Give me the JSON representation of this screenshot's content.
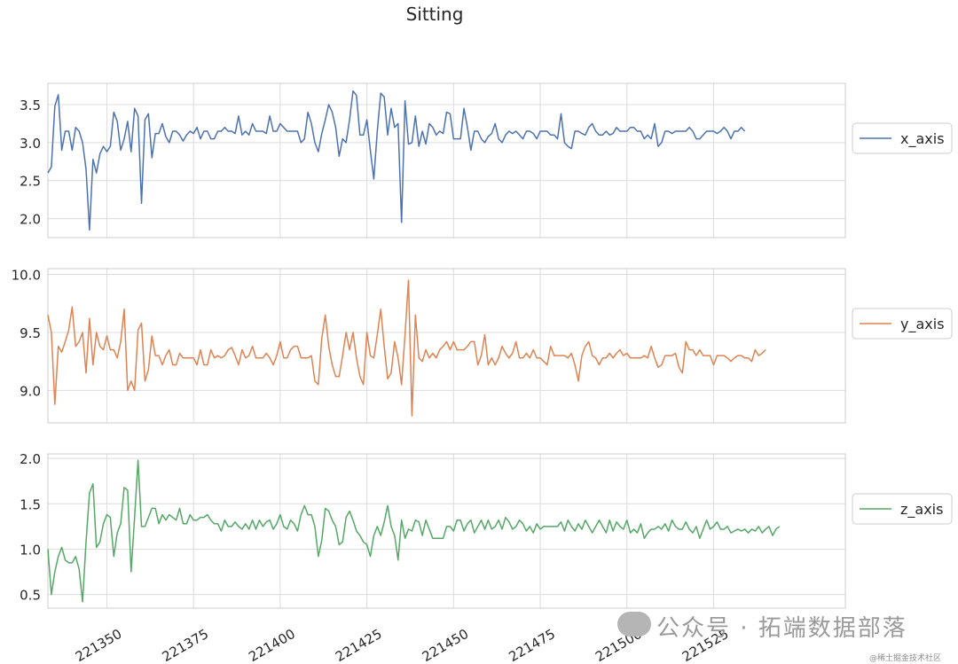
{
  "chart_data": {
    "title": "Sitting",
    "type": "line",
    "x_start": 221333,
    "xlim": [
      221333,
      221563
    ],
    "xticks": [
      221350,
      221375,
      221400,
      221425,
      221450,
      221475,
      221500,
      221525
    ],
    "xtick_labels": [
      "221350",
      "221375",
      "221400",
      "221425",
      "221450",
      "221475",
      "221500",
      "221525"
    ],
    "panels": [
      {
        "name": "x_axis",
        "color": "#4c72b0",
        "ylim": [
          1.75,
          3.78
        ],
        "yticks": [
          2.0,
          2.5,
          3.0,
          3.5
        ],
        "ytick_labels": [
          "2.0",
          "2.5",
          "3.0",
          "3.5"
        ],
        "legend": "x_axis",
        "values": [
          2.6,
          2.68,
          3.48,
          3.63,
          2.9,
          3.15,
          3.15,
          2.9,
          3.2,
          3.15,
          3.0,
          2.65,
          1.85,
          2.78,
          2.6,
          2.85,
          2.95,
          2.88,
          2.95,
          3.4,
          3.28,
          2.9,
          3.05,
          3.28,
          2.88,
          3.45,
          3.35,
          2.2,
          3.3,
          3.38,
          2.8,
          3.12,
          3.12,
          3.25,
          3.08,
          3.0,
          3.15,
          3.15,
          3.1,
          3.02,
          3.1,
          3.15,
          3.12,
          3.2,
          3.05,
          3.15,
          3.15,
          3.05,
          3.05,
          3.15,
          3.15,
          3.2,
          3.15,
          3.15,
          3.12,
          3.35,
          3.1,
          3.15,
          3.1,
          3.25,
          3.15,
          3.15,
          3.15,
          3.12,
          3.35,
          3.15,
          3.15,
          3.25,
          3.2,
          3.15,
          3.15,
          3.15,
          3.15,
          3.0,
          3.05,
          3.4,
          3.25,
          3.0,
          2.88,
          3.12,
          3.3,
          3.5,
          3.4,
          3.2,
          2.82,
          3.05,
          3.0,
          3.3,
          3.68,
          3.62,
          3.1,
          3.1,
          3.3,
          2.9,
          2.52,
          3.15,
          3.65,
          3.6,
          3.1,
          3.45,
          3.2,
          3.25,
          1.95,
          3.55,
          2.98,
          3.0,
          3.35,
          2.95,
          3.15,
          2.98,
          3.25,
          3.2,
          3.1,
          3.15,
          3.12,
          3.4,
          3.38,
          3.05,
          3.05,
          3.05,
          3.45,
          3.2,
          2.9,
          3.15,
          3.15,
          3.05,
          3.0,
          3.08,
          3.12,
          3.25,
          3.05,
          3.0,
          3.1,
          3.15,
          3.12,
          3.15,
          3.1,
          3.05,
          3.15,
          3.15,
          3.12,
          3.05,
          3.15,
          3.15,
          3.15,
          3.1,
          3.1,
          3.05,
          3.38,
          3.0,
          2.95,
          2.92,
          3.15,
          3.15,
          3.12,
          3.1,
          3.2,
          3.25,
          3.15,
          3.1,
          3.1,
          3.15,
          3.1,
          3.12,
          3.2,
          3.15,
          3.15,
          3.15,
          3.2,
          3.2,
          3.15,
          3.15,
          3.05,
          3.1,
          3.05,
          3.25,
          2.95,
          3.0,
          3.15,
          3.15,
          3.12,
          3.15,
          3.15,
          3.15,
          3.15,
          3.2,
          3.15,
          3.05,
          3.05,
          3.1,
          3.15,
          3.15,
          3.15,
          3.12,
          3.15,
          3.2,
          3.15,
          3.05,
          3.15,
          3.15,
          3.2,
          3.15
        ]
      },
      {
        "name": "y_axis",
        "color": "#dd8452",
        "ylim": [
          8.72,
          10.05
        ],
        "yticks": [
          9.0,
          9.5,
          10.0
        ],
        "ytick_labels": [
          "9.0",
          "9.5",
          "10.0"
        ],
        "legend": "y_axis",
        "values": [
          9.65,
          9.5,
          8.88,
          9.38,
          9.33,
          9.42,
          9.52,
          9.72,
          9.38,
          9.42,
          9.5,
          9.15,
          9.62,
          9.22,
          9.5,
          9.38,
          9.35,
          9.47,
          9.35,
          9.35,
          9.28,
          9.42,
          9.7,
          9.0,
          9.08,
          9.0,
          9.52,
          9.58,
          9.08,
          9.18,
          9.47,
          9.3,
          9.3,
          9.22,
          9.3,
          9.35,
          9.22,
          9.22,
          9.32,
          9.28,
          9.28,
          9.28,
          9.28,
          9.22,
          9.35,
          9.22,
          9.22,
          9.35,
          9.28,
          9.3,
          9.28,
          9.3,
          9.35,
          9.37,
          9.3,
          9.22,
          9.35,
          9.28,
          9.3,
          9.38,
          9.28,
          9.28,
          9.28,
          9.32,
          9.28,
          9.22,
          9.3,
          9.42,
          9.28,
          9.28,
          9.35,
          9.38,
          9.38,
          9.28,
          9.28,
          9.28,
          9.3,
          9.08,
          9.05,
          9.45,
          9.65,
          9.38,
          9.22,
          9.12,
          9.12,
          9.3,
          9.5,
          9.35,
          9.5,
          9.28,
          9.12,
          9.05,
          9.5,
          9.3,
          9.28,
          9.48,
          9.7,
          9.38,
          9.1,
          9.15,
          9.42,
          9.28,
          9.05,
          9.48,
          9.95,
          8.78,
          9.65,
          9.28,
          9.25,
          9.35,
          9.28,
          9.32,
          9.28,
          9.35,
          9.38,
          9.42,
          9.35,
          9.42,
          9.35,
          9.35,
          9.35,
          9.38,
          9.42,
          9.42,
          9.22,
          9.3,
          9.48,
          9.22,
          9.28,
          9.22,
          9.28,
          9.38,
          9.32,
          9.28,
          9.32,
          9.42,
          9.28,
          9.28,
          9.32,
          9.28,
          9.35,
          9.28,
          9.28,
          9.25,
          9.22,
          9.38,
          9.3,
          9.3,
          9.3,
          9.3,
          9.28,
          9.32,
          9.22,
          9.08,
          9.3,
          9.38,
          9.42,
          9.3,
          9.28,
          9.22,
          9.28,
          9.28,
          9.32,
          9.28,
          9.32,
          9.35,
          9.3,
          9.32,
          9.28,
          9.28,
          9.28,
          9.28,
          9.3,
          9.28,
          9.38,
          9.28,
          9.2,
          9.22,
          9.3,
          9.3,
          9.3,
          9.32,
          9.2,
          9.15,
          9.42,
          9.35,
          9.35,
          9.3,
          9.35,
          9.3,
          9.3,
          9.3,
          9.22,
          9.3,
          9.3,
          9.3,
          9.28,
          9.25,
          9.28,
          9.3,
          9.3,
          9.28,
          9.28,
          9.25,
          9.35,
          9.3,
          9.32,
          9.35
        ]
      },
      {
        "name": "z_axis",
        "color": "#55a868",
        "ylim": [
          0.35,
          2.05
        ],
        "yticks": [
          0.5,
          1.0,
          1.5,
          2.0
        ],
        "ytick_labels": [
          "0.5",
          "1.0",
          "1.5",
          "2.0"
        ],
        "legend": "z_axis",
        "values": [
          1.0,
          0.5,
          0.75,
          0.92,
          1.02,
          0.88,
          0.85,
          0.85,
          0.92,
          0.78,
          0.42,
          1.08,
          1.62,
          1.72,
          1.02,
          1.08,
          1.28,
          1.38,
          1.35,
          0.92,
          1.18,
          1.28,
          1.68,
          1.65,
          0.75,
          1.35,
          1.98,
          1.25,
          1.25,
          1.35,
          1.45,
          1.45,
          1.28,
          1.38,
          1.32,
          1.38,
          1.35,
          1.32,
          1.45,
          1.28,
          1.28,
          1.38,
          1.32,
          1.32,
          1.35,
          1.35,
          1.38,
          1.32,
          1.28,
          1.28,
          1.2,
          1.32,
          1.25,
          1.25,
          1.3,
          1.25,
          1.22,
          1.28,
          1.22,
          1.32,
          1.22,
          1.32,
          1.25,
          1.3,
          1.32,
          1.22,
          1.28,
          1.38,
          1.25,
          1.22,
          1.32,
          1.28,
          1.2,
          1.38,
          1.48,
          1.38,
          1.38,
          1.25,
          0.92,
          1.1,
          1.45,
          1.42,
          1.32,
          1.25,
          1.05,
          1.08,
          1.35,
          1.42,
          1.32,
          1.2,
          1.15,
          1.08,
          1.05,
          0.92,
          1.15,
          1.25,
          1.15,
          1.3,
          1.48,
          1.25,
          1.15,
          0.88,
          1.32,
          1.12,
          1.22,
          1.2,
          1.32,
          1.3,
          1.15,
          1.32,
          1.22,
          1.12,
          1.12,
          1.12,
          1.12,
          1.25,
          1.25,
          1.2,
          1.32,
          1.32,
          1.2,
          1.28,
          1.32,
          1.18,
          1.25,
          1.32,
          1.22,
          1.32,
          1.22,
          1.25,
          1.32,
          1.22,
          1.35,
          1.3,
          1.22,
          1.25,
          1.32,
          1.28,
          1.2,
          1.25,
          1.18,
          1.28,
          1.22,
          1.25,
          1.25,
          1.25,
          1.25,
          1.25,
          1.3,
          1.2,
          1.32,
          1.25,
          1.2,
          1.28,
          1.22,
          1.32,
          1.25,
          1.18,
          1.25,
          1.32,
          1.25,
          1.18,
          1.32,
          1.2,
          1.3,
          1.25,
          1.22,
          1.32,
          1.18,
          1.22,
          1.18,
          1.28,
          1.12,
          1.18,
          1.22,
          1.22,
          1.25,
          1.22,
          1.28,
          1.2,
          1.32,
          1.25,
          1.22,
          1.22,
          1.3,
          1.22,
          1.18,
          1.25,
          1.12,
          1.22,
          1.32,
          1.22,
          1.25,
          1.3,
          1.22,
          1.22,
          1.25,
          1.18,
          1.2,
          1.22,
          1.2,
          1.22,
          1.18,
          1.22,
          1.2,
          1.25,
          1.18,
          1.22,
          1.25,
          1.15,
          1.22,
          1.25
        ]
      }
    ]
  },
  "watermark": {
    "text": "公众号 · 拓端数据部落",
    "small": "@稀土掘金技术社区"
  }
}
